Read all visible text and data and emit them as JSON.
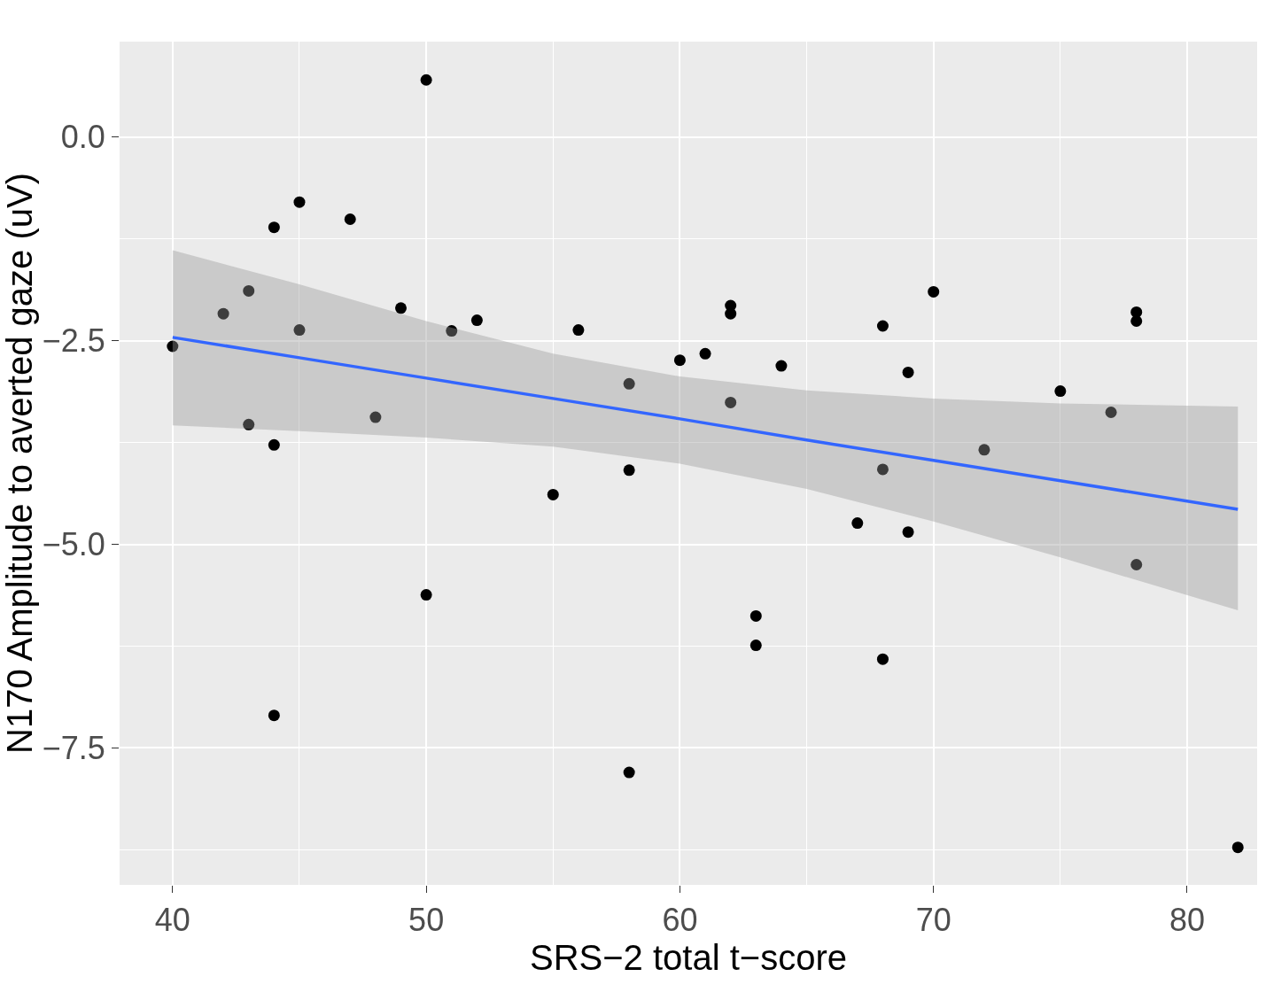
{
  "chart_data": {
    "type": "scatter",
    "xlabel": "SRS−2 total t−score",
    "ylabel": "N170 Amplitude to averted gaze (uV)",
    "xlim": [
      37.91,
      82.76
    ],
    "ylim": [
      -9.18,
      1.17
    ],
    "xticks": [
      40,
      50,
      60,
      70,
      80
    ],
    "yticks": [
      {
        "value": 0,
        "label": "0.0"
      },
      {
        "value": -2.5,
        "label": "−2.5"
      },
      {
        "value": -5,
        "label": "−5.0"
      },
      {
        "value": -7.5,
        "label": "−7.5"
      }
    ],
    "grid": true,
    "series": [
      {
        "marker": "circle",
        "color": "#000000",
        "x": [
          40,
          42,
          43,
          43,
          44,
          44,
          44,
          45,
          45,
          47,
          48,
          49,
          50,
          50,
          51,
          52,
          55,
          56,
          58,
          58,
          58,
          60,
          61,
          62,
          62,
          62,
          63,
          63,
          64,
          67,
          68,
          68,
          68,
          69,
          69,
          70,
          72,
          75,
          77,
          78,
          78,
          78,
          82
        ],
        "values": [
          -2.57,
          -2.17,
          -1.89,
          -3.53,
          -1.11,
          -3.78,
          -7.1,
          -0.8,
          -2.37,
          -1.01,
          -3.44,
          -2.1,
          0.7,
          -5.62,
          -2.38,
          -2.25,
          -4.39,
          -2.37,
          -3.03,
          -4.09,
          -7.8,
          -2.74,
          -2.66,
          -2.07,
          -2.17,
          -3.26,
          -5.88,
          -6.24,
          -2.81,
          -4.74,
          -2.32,
          -4.08,
          -6.41,
          -2.89,
          -4.85,
          -1.9,
          -3.84,
          -3.12,
          -3.38,
          -2.15,
          -2.26,
          -5.25,
          -8.72
        ]
      },
      {
        "type": "line",
        "marker": "none",
        "color": "#3366ff",
        "line_style": "solid",
        "x": [
          40,
          45,
          50,
          55,
          60,
          65,
          70,
          75,
          82
        ],
        "values": [
          -2.46,
          -2.71,
          -2.96,
          -3.21,
          -3.46,
          -3.72,
          -3.97,
          -4.22,
          -4.57
        ],
        "lower": [
          -3.54,
          -3.61,
          -3.69,
          -3.8,
          -4.01,
          -4.32,
          -4.72,
          -5.16,
          -5.81
        ],
        "upper": [
          -1.39,
          -1.81,
          -2.26,
          -2.66,
          -2.94,
          -3.11,
          -3.21,
          -3.27,
          -3.31
        ]
      }
    ]
  }
}
